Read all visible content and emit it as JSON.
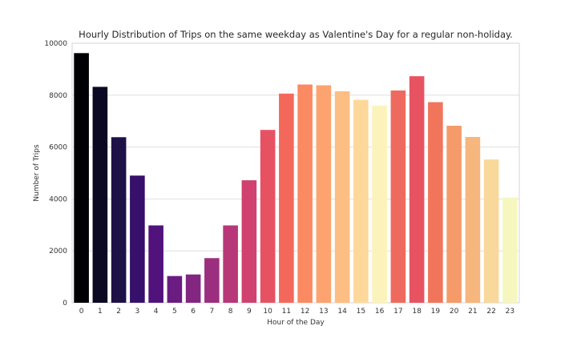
{
  "chart_data": {
    "type": "bar",
    "title": "Hourly Distribution of Trips on the same weekday as Valentine's Day for a regular non-holiday.",
    "xlabel": "Hour of the Day",
    "ylabel": "Number of Trips",
    "categories": [
      "0",
      "1",
      "2",
      "3",
      "4",
      "5",
      "6",
      "7",
      "8",
      "9",
      "10",
      "11",
      "12",
      "13",
      "14",
      "15",
      "16",
      "17",
      "18",
      "19",
      "20",
      "21",
      "22",
      "23"
    ],
    "values": [
      9620,
      8320,
      6380,
      4900,
      2980,
      1030,
      1090,
      1720,
      2980,
      4720,
      6660,
      8060,
      8410,
      8380,
      8150,
      7820,
      7600,
      8180,
      8730,
      7730,
      6820,
      6390,
      5520,
      4060
    ],
    "ylim": [
      0,
      10000
    ],
    "yticks": [
      0,
      2000,
      4000,
      6000,
      8000,
      10000
    ],
    "grid": true,
    "palette": "magma",
    "colors": [
      "#000004",
      "#0a0822",
      "#1d1147",
      "#36106b",
      "#51127c",
      "#6a1c81",
      "#832681",
      "#9c2e7f",
      "#b73779",
      "#d0416f",
      "#e75263",
      "#f4685c",
      "#fa8a61",
      "#fca36f",
      "#fdbe84",
      "#fed89a",
      "#fcf3bc",
      "#ef6a5e",
      "#e85362",
      "#f1755b",
      "#f59b6a",
      "#f7b67d",
      "#f9d89b",
      "#f6f7bf"
    ]
  }
}
